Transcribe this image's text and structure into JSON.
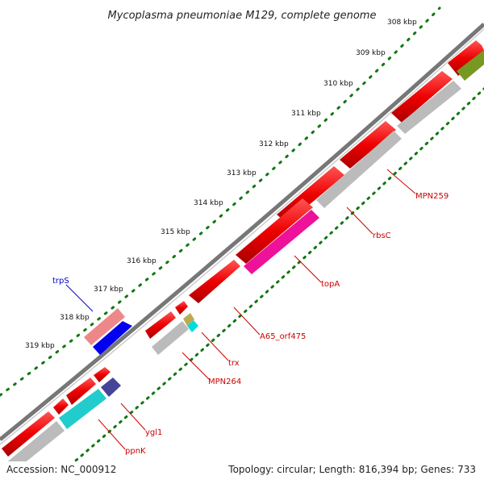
{
  "title": "Mycoplasma pneumoniae M129, complete genome",
  "footer": {
    "accession": "Accession: NC_000912",
    "summary": "Topology: circular; Length: 816,394 bp; Genes: 733"
  },
  "ticks": [
    "308 kbp",
    "309 kbp",
    "310 kbp",
    "311 kbp",
    "312 kbp",
    "313 kbp",
    "314 kbp",
    "315 kbp",
    "316 kbp",
    "317 kbp",
    "318 kbp",
    "319 kbp"
  ],
  "colors": {
    "forward": "#ee0000",
    "backbone": "#888888",
    "grey_feature": "#bbbbbb",
    "topA": "#ee1199",
    "trpS": "#0000ee",
    "trpS_shade": "#ee8888",
    "ppnK": "#22cccc",
    "ygl1": "#444499",
    "trx": "#00dddd",
    "olive": "#779922",
    "tick": "#117711",
    "label_red": "#cc0000",
    "label_blue": "#0000cc"
  },
  "genes": {
    "trpS": "trpS",
    "MPN259": "MPN259",
    "rbsC": "rbsC",
    "topA": "topA",
    "A65_orf475": "A65_orf475",
    "trx": "trx",
    "MPN264": "MPN264",
    "ygl1": "ygl1",
    "ppnK": "ppnK"
  }
}
